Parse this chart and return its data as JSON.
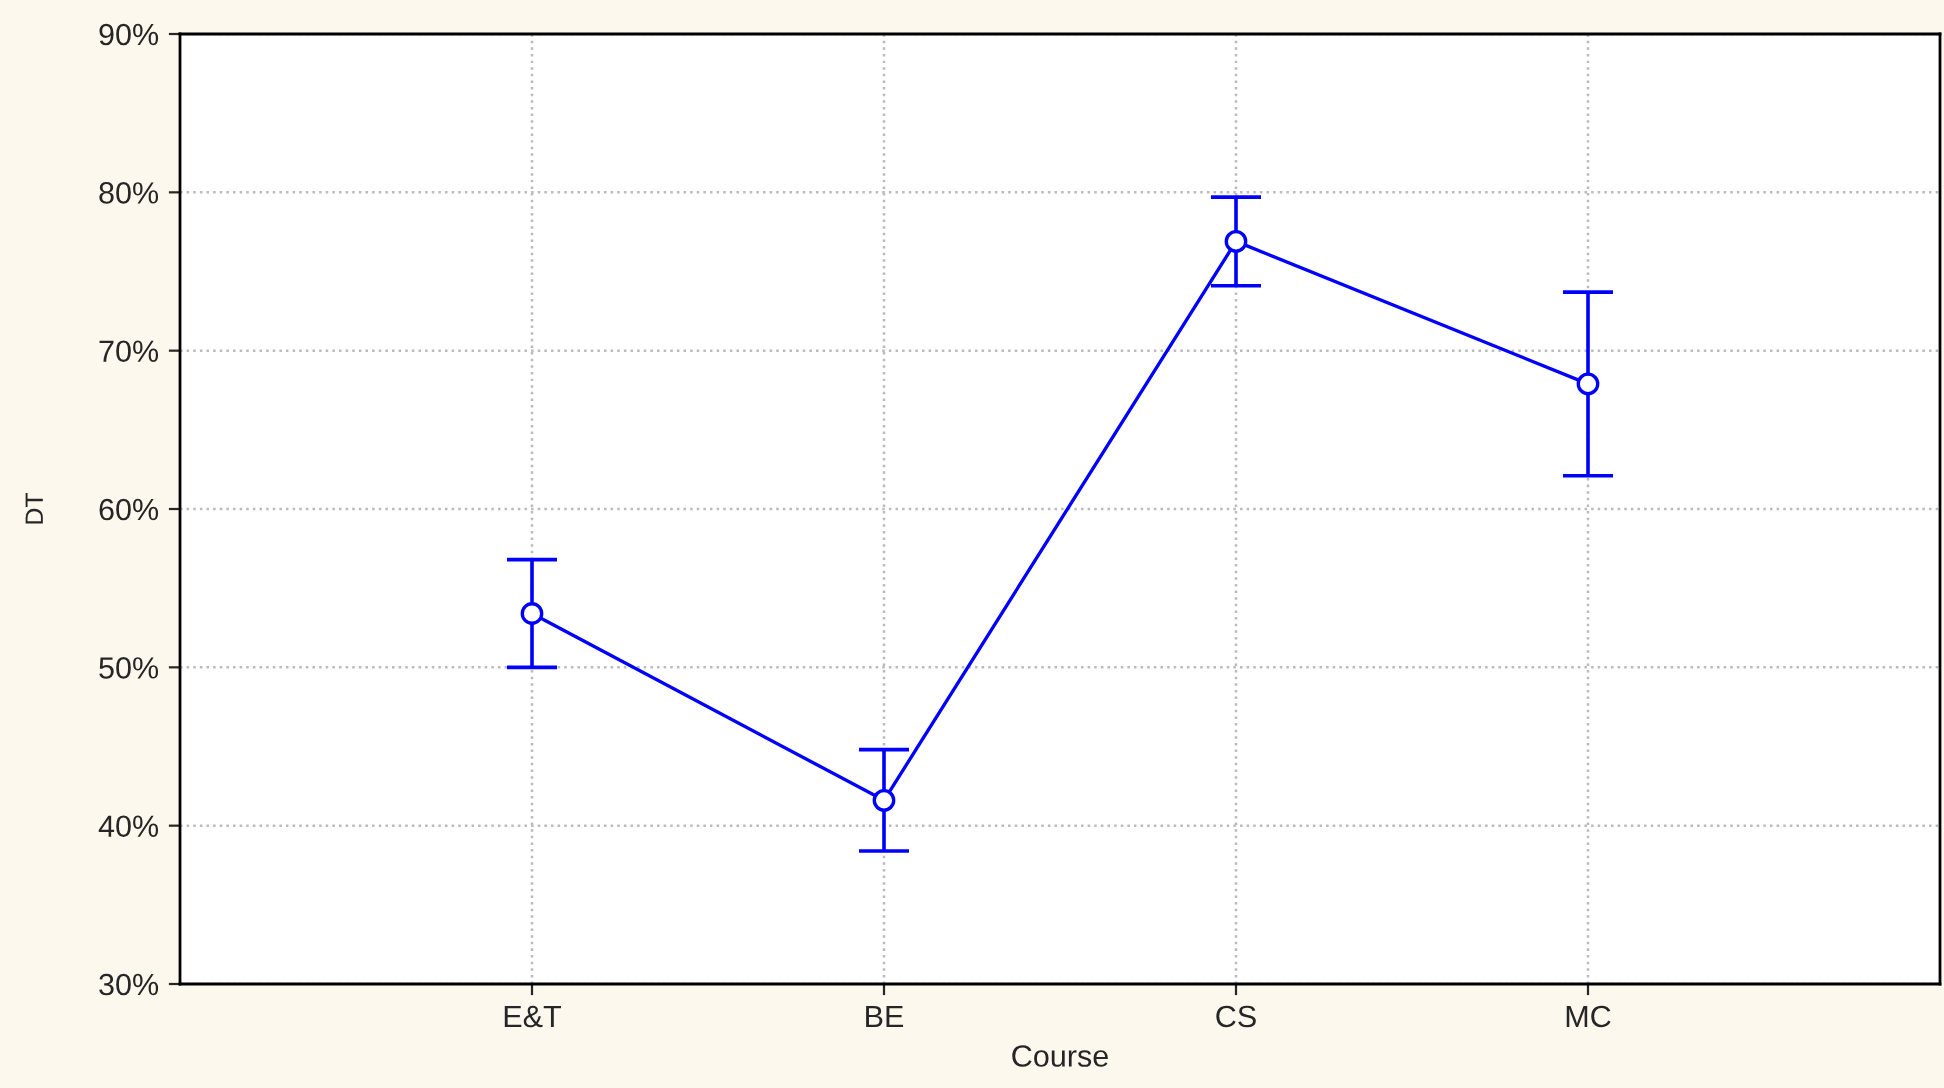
{
  "chart_data": {
    "type": "line",
    "xlabel": "Course",
    "ylabel": "DT",
    "categories": [
      "E&T",
      "BE",
      "CS",
      "MC"
    ],
    "series": [
      {
        "color": "#0000ff",
        "values": [
          53.4,
          41.6,
          76.9,
          67.9
        ],
        "errors": [
          3.4,
          3.2,
          2.8,
          5.8
        ]
      }
    ],
    "ylim": [
      30,
      90
    ],
    "yticks": [
      {
        "value": 30,
        "label": "30%"
      },
      {
        "value": 40,
        "label": "40%"
      },
      {
        "value": 50,
        "label": "50%"
      },
      {
        "value": 60,
        "label": "60%"
      },
      {
        "value": 70,
        "label": "70%"
      },
      {
        "value": 80,
        "label": "80%"
      },
      {
        "value": 90,
        "label": "90%"
      }
    ],
    "grid": true,
    "marker": "circle",
    "line_style": "solid",
    "legend": false
  }
}
